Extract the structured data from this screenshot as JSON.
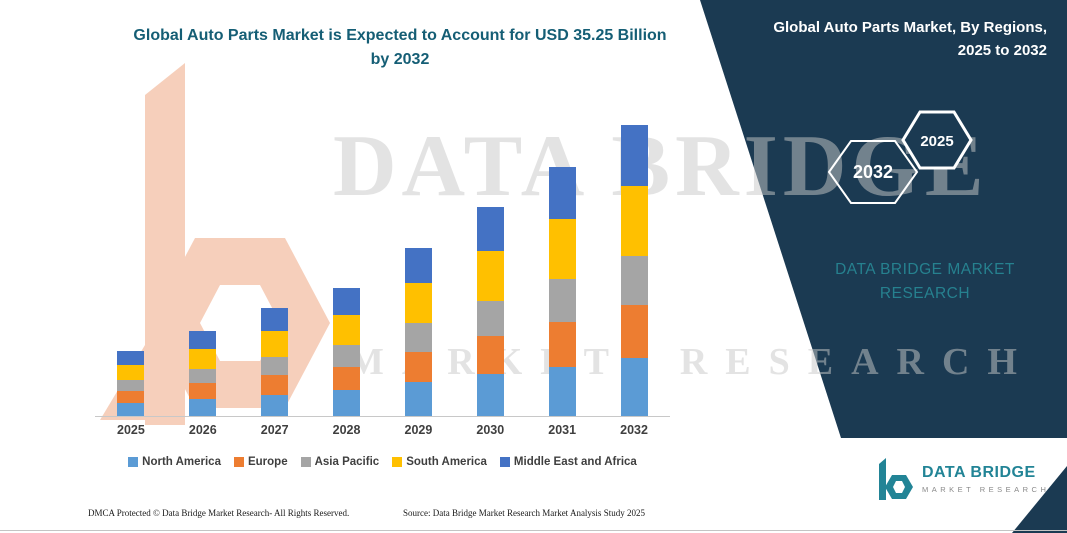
{
  "title": {
    "line1": "Global Auto Parts Market is Expected to Account for USD 35.25 Billion",
    "line2": "by 2032"
  },
  "panel": {
    "bg_color": "#1b3a52",
    "title_line1": "Global Auto Parts Market, By Regions,",
    "title_line2": "2025 to 2032",
    "hexagons": [
      {
        "label": "2032"
      },
      {
        "label": "2025"
      }
    ],
    "brand_line1": "DATA BRIDGE MARKET",
    "brand_line2": "RESEARCH",
    "brand_color": "#26818f"
  },
  "watermark": {
    "line1": "DATA BRIDGE",
    "line2": "MARKET RESEARCH"
  },
  "icons": {
    "watermark_logo": "dbmr-b-watermark",
    "footer_logo": "dbmr-b-logo",
    "watermark_color": "#f6cfbb"
  },
  "footer": {
    "dmca": "DMCA Protected © Data Bridge Market Research-  All Rights Reserved.",
    "source": "Source: Data Bridge Market Research  Market Analysis Study 2025"
  },
  "logo": {
    "name": "DATA BRIDGE",
    "subtitle": "MARKET RESEARCH",
    "color": "#228496"
  },
  "chart_data": {
    "type": "bar",
    "stacked": true,
    "title": "Global Auto Parts Market is Expected to Account for USD 35.25 Billion by 2032",
    "unit": "USD Billion",
    "categories": [
      "2025",
      "2026",
      "2027",
      "2028",
      "2029",
      "2030",
      "2031",
      "2032"
    ],
    "series": [
      {
        "name": "North America",
        "color": "#5B9BD5",
        "values": [
          1.6,
          2.1,
          2.6,
          3.1,
          4.1,
          5.1,
          6.0,
          7.05
        ]
      },
      {
        "name": "Europe",
        "color": "#ED7D31",
        "values": [
          1.4,
          1.85,
          2.35,
          2.8,
          3.65,
          4.55,
          5.45,
          6.35
        ]
      },
      {
        "name": "Asia Pacific",
        "color": "#A5A5A5",
        "values": [
          1.35,
          1.75,
          2.25,
          2.65,
          3.5,
          4.3,
          5.15,
          6.0
        ]
      },
      {
        "name": "South America",
        "color": "#FFC000",
        "values": [
          1.9,
          2.45,
          3.15,
          3.7,
          4.9,
          6.1,
          7.25,
          8.45
        ]
      },
      {
        "name": "Middle East and Africa",
        "color": "#4472C4",
        "values": [
          1.65,
          2.15,
          2.75,
          3.25,
          4.25,
          5.35,
          6.35,
          7.4
        ]
      }
    ],
    "totals": [
      7.9,
      10.3,
      13.1,
      15.5,
      20.4,
      25.4,
      30.2,
      35.25
    ],
    "ylim": [
      0,
      36
    ],
    "grid": false,
    "legend_position": "bottom"
  }
}
